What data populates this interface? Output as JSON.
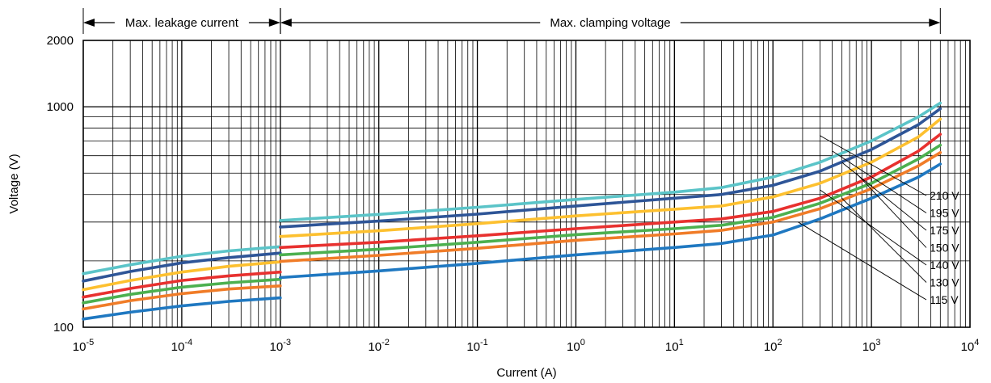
{
  "chart_data": {
    "type": "line",
    "xlabel": "Current (A)",
    "ylabel": "Voltage (V)",
    "xscale": "log",
    "yscale": "log",
    "xlim": [
      1e-05,
      10000
    ],
    "ylim": [
      100,
      2000
    ],
    "grid": true,
    "x_ticks": [
      {
        "base": "10",
        "exp": "-5"
      },
      {
        "base": "10",
        "exp": "-4"
      },
      {
        "base": "10",
        "exp": "-3"
      },
      {
        "base": "10",
        "exp": "-2"
      },
      {
        "base": "10",
        "exp": "-1"
      },
      {
        "base": "10",
        "exp": "0"
      },
      {
        "base": "10",
        "exp": "1"
      },
      {
        "base": "10",
        "exp": "2"
      },
      {
        "base": "10",
        "exp": "3"
      },
      {
        "base": "10",
        "exp": "4"
      }
    ],
    "y_ticks": [
      "100",
      "1000",
      "2000"
    ],
    "ranges": [
      {
        "label": "Max. leakage current",
        "x": [
          1e-05,
          0.001
        ]
      },
      {
        "label": "Max. clamping voltage",
        "x": [
          0.001,
          5000
        ]
      }
    ],
    "series": [
      {
        "name": "210 V",
        "color": "#5bc4c8",
        "leakage": {
          "x": [
            1e-05,
            3e-05,
            0.0001,
            0.0003,
            0.001
          ],
          "y": [
            175,
            192,
            210,
            222,
            232
          ]
        },
        "clamping": {
          "x": [
            0.001,
            0.01,
            0.1,
            1,
            10,
            30,
            100,
            300,
            1000,
            3000,
            5000
          ],
          "y": [
            305,
            325,
            350,
            380,
            410,
            430,
            480,
            560,
            700,
            900,
            1040
          ]
        }
      },
      {
        "name": "195 V",
        "color": "#2e5597",
        "leakage": {
          "x": [
            1e-05,
            3e-05,
            0.0001,
            0.0003,
            0.001
          ],
          "y": [
            162,
            179,
            196,
            207,
            217
          ]
        },
        "clamping": {
          "x": [
            0.001,
            0.01,
            0.1,
            1,
            10,
            30,
            100,
            300,
            1000,
            3000,
            5000
          ],
          "y": [
            285,
            303,
            326,
            355,
            385,
            400,
            440,
            510,
            640,
            830,
            980
          ]
        }
      },
      {
        "name": "175 V",
        "color": "#fdc02f",
        "leakage": {
          "x": [
            1e-05,
            3e-05,
            0.0001,
            0.0003,
            0.001
          ],
          "y": [
            148,
            163,
            178,
            189,
            198
          ]
        },
        "clamping": {
          "x": [
            0.001,
            0.01,
            0.1,
            1,
            10,
            30,
            100,
            300,
            1000,
            3000,
            5000
          ],
          "y": [
            258,
            274,
            295,
            320,
            343,
            355,
            390,
            450,
            560,
            730,
            880
          ]
        }
      },
      {
        "name": "150 V",
        "color": "#e8312f",
        "leakage": {
          "x": [
            1e-05,
            3e-05,
            0.0001,
            0.0003,
            0.001
          ],
          "y": [
            137,
            150,
            163,
            171,
            178
          ]
        },
        "clamping": {
          "x": [
            0.001,
            0.01,
            0.1,
            1,
            10,
            30,
            100,
            300,
            1000,
            3000,
            5000
          ],
          "y": [
            230,
            243,
            260,
            280,
            300,
            310,
            335,
            385,
            480,
            630,
            750
          ]
        }
      },
      {
        "name": "140 V",
        "color": "#4cb04f",
        "leakage": {
          "x": [
            1e-05,
            3e-05,
            0.0001,
            0.0003,
            0.001
          ],
          "y": [
            129,
            141,
            152,
            159,
            165
          ]
        },
        "clamping": {
          "x": [
            0.001,
            0.01,
            0.1,
            1,
            10,
            30,
            100,
            300,
            1000,
            3000,
            5000
          ],
          "y": [
            213,
            226,
            243,
            263,
            280,
            290,
            315,
            365,
            450,
            580,
            670
          ]
        }
      },
      {
        "name": "130 V",
        "color": "#f07c28",
        "leakage": {
          "x": [
            1e-05,
            3e-05,
            0.0001,
            0.0003,
            0.001
          ],
          "y": [
            121,
            132,
            142,
            149,
            154
          ]
        },
        "clamping": {
          "x": [
            0.001,
            0.01,
            0.1,
            1,
            10,
            30,
            100,
            300,
            1000,
            3000,
            5000
          ],
          "y": [
            199,
            212,
            228,
            248,
            265,
            275,
            300,
            345,
            425,
            540,
            620
          ]
        }
      },
      {
        "name": "115 V",
        "color": "#1f78c1",
        "leakage": {
          "x": [
            1e-05,
            3e-05,
            0.0001,
            0.0003,
            0.001
          ],
          "y": [
            109,
            117,
            125,
            131,
            136
          ]
        },
        "clamping": {
          "x": [
            0.001,
            0.01,
            0.1,
            1,
            10,
            30,
            100,
            300,
            1000,
            3000,
            5000
          ],
          "y": [
            168,
            180,
            195,
            213,
            230,
            240,
            262,
            310,
            385,
            480,
            550
          ]
        }
      }
    ],
    "label_anchors": [
      {
        "x": 300,
        "y": 740
      },
      {
        "x": 400,
        "y": 630
      },
      {
        "x": 500,
        "y": 560
      },
      {
        "x": 700,
        "y": 500
      },
      {
        "x": 300,
        "y": 420
      },
      {
        "x": 500,
        "y": 385
      },
      {
        "x": 180,
        "y": 300
      }
    ]
  }
}
